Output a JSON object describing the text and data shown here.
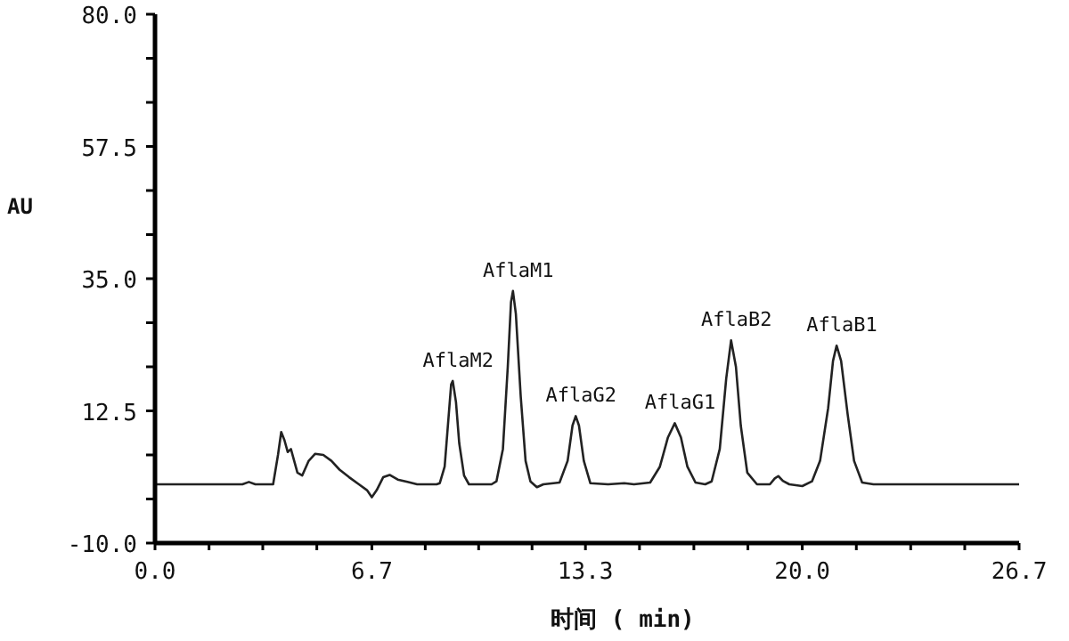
{
  "chart_data": {
    "type": "line",
    "xlabel": "时间 ( min)",
    "ylabel": "AU",
    "xlim": [
      0,
      26.7
    ],
    "ylim": [
      -10,
      80
    ],
    "xticks": [
      {
        "value": 0,
        "label": "0.0"
      },
      {
        "value": 1.67,
        "label": null
      },
      {
        "value": 3.33,
        "label": null
      },
      {
        "value": 5,
        "label": null
      },
      {
        "value": 6.7,
        "label": "6.7"
      },
      {
        "value": 8.35,
        "label": null
      },
      {
        "value": 10,
        "label": null
      },
      {
        "value": 11.65,
        "label": null
      },
      {
        "value": 13.3,
        "label": "13.3"
      },
      {
        "value": 14.97,
        "label": null
      },
      {
        "value": 16.65,
        "label": null
      },
      {
        "value": 18.32,
        "label": null
      },
      {
        "value": 20,
        "label": "20.0"
      },
      {
        "value": 21.67,
        "label": null
      },
      {
        "value": 23.35,
        "label": null
      },
      {
        "value": 25.02,
        "label": null
      },
      {
        "value": 26.7,
        "label": "26.7"
      }
    ],
    "yticks": [
      {
        "value": -10,
        "label": "-10.0"
      },
      {
        "value": -2.5,
        "label": null
      },
      {
        "value": 5,
        "label": null
      },
      {
        "value": 12.5,
        "label": "12.5"
      },
      {
        "value": 20,
        "label": null
      },
      {
        "value": 27.5,
        "label": null
      },
      {
        "value": 35,
        "label": "35.0"
      },
      {
        "value": 42.5,
        "label": null
      },
      {
        "value": 50,
        "label": null
      },
      {
        "value": 57.5,
        "label": "57.5"
      },
      {
        "value": 65,
        "label": null
      },
      {
        "value": 72.5,
        "label": null
      },
      {
        "value": 80,
        "label": "80.0"
      }
    ],
    "grid": false,
    "marker": "none",
    "line_style": "solid",
    "series": [
      {
        "color": "#222222",
        "x": [
          0,
          2.7,
          2.9,
          3.1,
          3.65,
          3.8,
          3.9,
          4.0,
          4.1,
          4.2,
          4.3,
          4.4,
          4.55,
          4.75,
          4.95,
          5.2,
          5.45,
          5.7,
          6.0,
          6.3,
          6.55,
          6.7,
          6.85,
          7.05,
          7.25,
          7.5,
          7.8,
          8.1,
          8.7,
          8.8,
          8.95,
          9.05,
          9.15,
          9.2,
          9.3,
          9.4,
          9.55,
          9.7,
          10.4,
          10.55,
          10.75,
          10.9,
          11.0,
          11.06,
          11.15,
          11.3,
          11.45,
          11.6,
          11.8,
          12.0,
          12.5,
          12.75,
          12.9,
          13.0,
          13.1,
          13.25,
          13.45,
          14.0,
          14.5,
          14.8,
          15.3,
          15.6,
          15.85,
          16.06,
          16.25,
          16.45,
          16.7,
          17.0,
          17.2,
          17.45,
          17.65,
          17.8,
          17.95,
          18.1,
          18.3,
          18.6,
          19.0,
          19.15,
          19.26,
          19.4,
          19.6,
          20.0,
          20.3,
          20.55,
          20.8,
          20.95,
          21.06,
          21.2,
          21.4,
          21.6,
          21.85,
          22.2,
          26.7
        ],
        "values": [
          0,
          0,
          0.4,
          0,
          0,
          5,
          8.9,
          7.5,
          5.5,
          6,
          4,
          2,
          1.5,
          4,
          5.2,
          5,
          4,
          2.5,
          1.2,
          0,
          -1,
          -2.2,
          -1,
          1.2,
          1.6,
          0.8,
          0.4,
          0,
          0,
          0.2,
          3,
          10,
          17,
          17.6,
          14,
          7,
          1.5,
          0,
          0,
          0.5,
          6,
          20,
          31,
          32.9,
          29,
          15,
          4,
          0.5,
          -0.5,
          0,
          0.3,
          4,
          10,
          11.6,
          10,
          4,
          0.2,
          0,
          0.2,
          0,
          0.3,
          3,
          8,
          10.4,
          8,
          3,
          0.3,
          0,
          0.5,
          6,
          18,
          24.5,
          20,
          10,
          2,
          0,
          0,
          1,
          1.4,
          0.6,
          0,
          -0.3,
          0.5,
          4,
          13,
          21,
          23.6,
          21,
          12,
          4,
          0.3,
          0,
          0
        ]
      }
    ],
    "annotations": [
      {
        "text": "AflaM2",
        "x": 9.2,
        "y": 17.6
      },
      {
        "text": "AflaM1",
        "x": 11.06,
        "y": 32.9
      },
      {
        "text": "AflaG2",
        "x": 13.0,
        "y": 11.6
      },
      {
        "text": "AflaG1",
        "x": 16.06,
        "y": 10.4
      },
      {
        "text": "AflaB2",
        "x": 17.8,
        "y": 24.5
      },
      {
        "text": "AflaB1",
        "x": 21.06,
        "y": 23.6
      }
    ]
  }
}
